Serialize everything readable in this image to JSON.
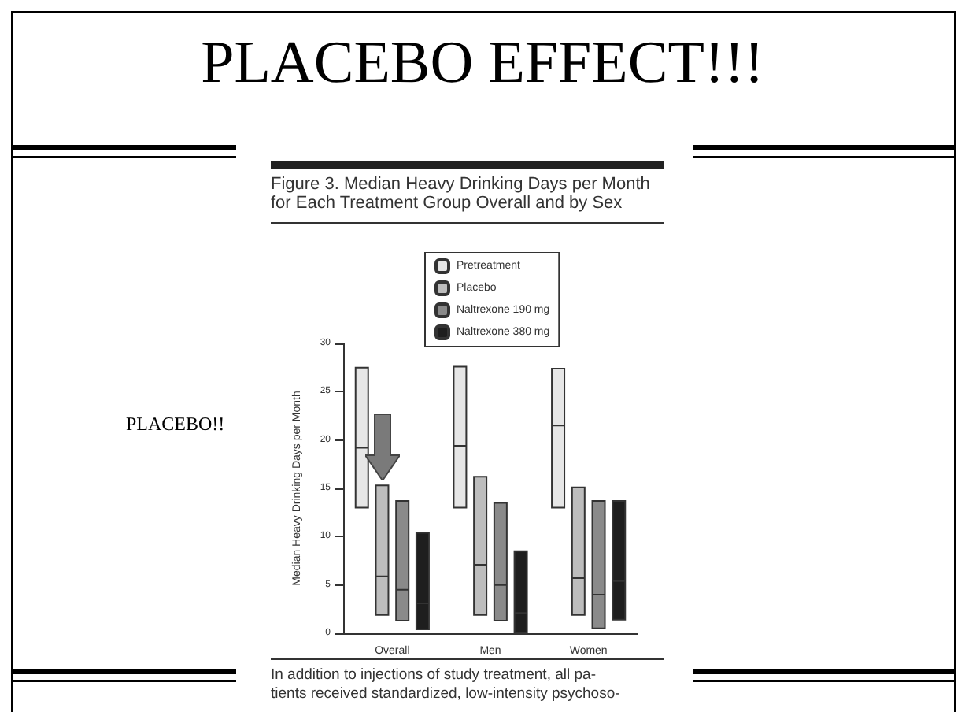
{
  "chart_data": {
    "type": "box",
    "title": "PLACEBO EFFECT!!!",
    "subtitle": "Figure 3. Median Heavy Drinking Days per Month for Each Treatment Group Overall and by Sex",
    "ylabel": "Median Heavy Drinking Days per Month",
    "annotations": [
      "PLACEBO!!",
      "In addition to injections of study treatment, all pa-\ntients received standardized, low-intensity psychoso-"
    ],
    "categories": [
      "Overall",
      "Men",
      "Women"
    ],
    "series": [
      {
        "name": "Pretreatment",
        "color": "#e6e6e6",
        "boxes": [
          {
            "low": 13,
            "q1": 13,
            "median": 19.2,
            "q3": 27.5,
            "high": 27.5
          },
          {
            "low": 13,
            "q1": 13,
            "median": 19.4,
            "q3": 27.6,
            "high": 27.6
          },
          {
            "low": 13,
            "q1": 13,
            "median": 21.5,
            "q3": 27.4,
            "high": 27.4
          }
        ]
      },
      {
        "name": "Placebo",
        "color": "#bdbdbd",
        "boxes": [
          {
            "low": 1.9,
            "q1": 1.9,
            "median": 5.9,
            "q3": 15.3,
            "high": 15.3
          },
          {
            "low": 1.9,
            "q1": 1.9,
            "median": 7.1,
            "q3": 16.2,
            "high": 16.2
          },
          {
            "low": 1.9,
            "q1": 1.9,
            "median": 5.7,
            "q3": 15.1,
            "high": 15.1
          }
        ]
      },
      {
        "name": "Naltrexone 190 mg",
        "color": "#8a8a8a",
        "boxes": [
          {
            "low": 1.3,
            "q1": 1.3,
            "median": 4.5,
            "q3": 13.7,
            "high": 13.7
          },
          {
            "low": 1.3,
            "q1": 1.3,
            "median": 5,
            "q3": 13.5,
            "high": 13.5
          },
          {
            "low": 0.5,
            "q1": 0.5,
            "median": 4,
            "q3": 13.7,
            "high": 13.7
          }
        ]
      },
      {
        "name": "Naltrexone 380 mg",
        "color": "#1e1e1e",
        "boxes": [
          {
            "low": 0.4,
            "q1": 0.4,
            "median": 3.1,
            "q3": 10.4,
            "high": 10.4
          },
          {
            "low": 0,
            "q1": 0,
            "median": 2.1,
            "q3": 8.5,
            "high": 8.5
          },
          {
            "low": 1.4,
            "q1": 1.4,
            "median": 5.4,
            "q3": 13.7,
            "high": 13.7
          }
        ]
      }
    ],
    "ylim": [
      0,
      30
    ],
    "yticks": [
      0,
      5,
      10,
      15,
      20,
      25,
      30
    ],
    "legend": "top",
    "grid": false
  }
}
